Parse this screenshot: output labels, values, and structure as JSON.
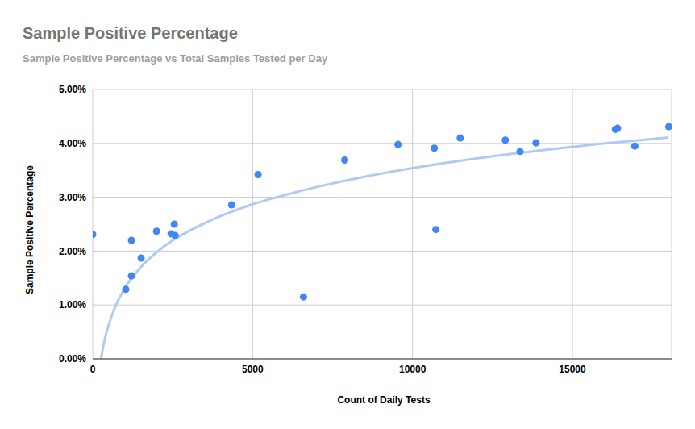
{
  "chart_data": {
    "type": "scatter",
    "title": "Sample Positive Percentage",
    "subtitle": "Sample Positive Percentage vs Total Samples Tested per Day",
    "x_label": "Count of Daily Tests",
    "y_label": "Sample Positive Percentage",
    "xlim": [
      0,
      18100
    ],
    "xticks": [
      0,
      5000,
      10000,
      15000
    ],
    "ylim": [
      0,
      5
    ],
    "yticks": [
      {
        "value": 0,
        "label": "0.00%"
      },
      {
        "value": 1,
        "label": "1.00%"
      },
      {
        "value": 2,
        "label": "2.00%"
      },
      {
        "value": 3,
        "label": "3.00%"
      },
      {
        "value": 4,
        "label": "4.00%"
      },
      {
        "value": 5,
        "label": "5.00%"
      }
    ],
    "grid": true,
    "series": [
      {
        "type": "scatter",
        "color": "#4285f4",
        "marker": "circle",
        "x": [
          0,
          1035,
          1212,
          1212,
          1515,
          1995,
          2450,
          2550,
          2576,
          4343,
          5170,
          6590,
          7880,
          9545,
          10680,
          10730,
          11490,
          12900,
          13360,
          13860,
          16340,
          16410,
          16950,
          18010
        ],
        "values": [
          2.31,
          1.29,
          2.2,
          1.54,
          1.87,
          2.37,
          2.32,
          2.5,
          2.29,
          2.86,
          3.42,
          1.15,
          3.69,
          3.98,
          3.91,
          2.4,
          4.1,
          4.06,
          3.85,
          4.01,
          4.26,
          4.28,
          3.95,
          4.31
        ]
      },
      {
        "type": "line",
        "color": "#aecbf5",
        "line_style": "solid",
        "x": [
          260,
          300,
          400,
          500,
          700,
          1000,
          1500,
          2000,
          2500,
          3000,
          4000,
          5000,
          6000,
          7000,
          8000,
          10000,
          12000,
          14000,
          16000,
          18000
        ],
        "values": [
          0,
          0.14,
          0.42,
          0.63,
          0.96,
          1.31,
          1.7,
          1.98,
          2.2,
          2.37,
          2.65,
          2.87,
          3.04,
          3.19,
          3.32,
          3.54,
          3.72,
          3.87,
          4.0,
          4.11
        ]
      }
    ]
  }
}
